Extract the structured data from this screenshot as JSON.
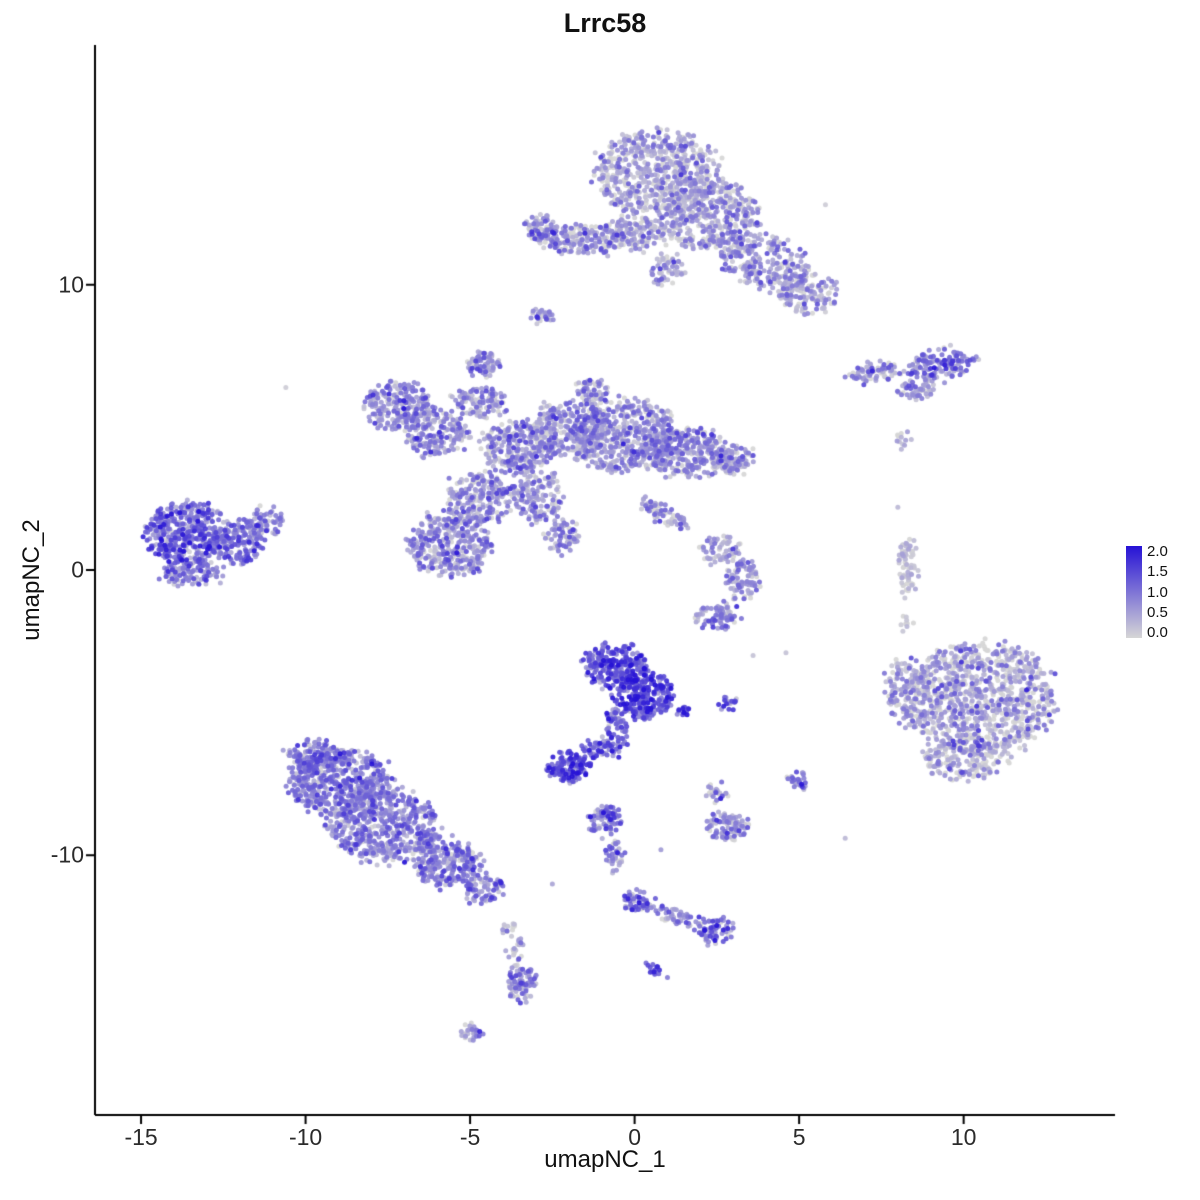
{
  "chart_data": {
    "type": "scatter",
    "title": "Lrrc58",
    "xlabel": "umapNC_1",
    "ylabel": "umapNC_2",
    "xlim": [
      -16.4,
      14.6
    ],
    "ylim": [
      -19.1,
      18.4
    ],
    "x_ticks": [
      -15,
      -10,
      -5,
      0,
      5,
      10
    ],
    "y_ticks": [
      -10,
      0,
      10
    ],
    "grid": false,
    "legend": {
      "labels": [
        "2.0",
        "1.5",
        "1.0",
        "0.5",
        "0.0"
      ],
      "position": "right",
      "domain": [
        0,
        2
      ]
    },
    "color_scale": {
      "low": "#D6D6D6",
      "high": "#2612D6"
    },
    "point_radius_px": 2.5,
    "clusters": [
      {
        "x": 0.7,
        "y": 13.9,
        "rx": 1.9,
        "ry": 1.5,
        "n": 650,
        "m": 0.35
      },
      {
        "x": 2.3,
        "y": 12.4,
        "rx": 1.5,
        "ry": 1.2,
        "n": 380,
        "m": 0.45
      },
      {
        "x": 3.9,
        "y": 10.8,
        "rx": 1.4,
        "ry": 0.9,
        "rot": -20,
        "n": 260,
        "m": 0.5
      },
      {
        "x": 5.3,
        "y": 9.7,
        "rx": 0.9,
        "ry": 0.7,
        "n": 130,
        "m": 0.45
      },
      {
        "x": 0.2,
        "y": 11.8,
        "rx": 1.0,
        "ry": 0.55,
        "n": 150,
        "m": 0.4
      },
      {
        "x": -1.7,
        "y": 11.6,
        "rx": 1.3,
        "ry": 0.5,
        "n": 200,
        "m": 0.45
      },
      {
        "x": -2.9,
        "y": 12.0,
        "rx": 0.4,
        "ry": 0.45,
        "n": 60,
        "m": 0.5
      },
      {
        "x": 1.0,
        "y": 10.5,
        "rx": 0.5,
        "ry": 0.5,
        "n": 60,
        "m": 0.4
      },
      {
        "x": -2.8,
        "y": 8.9,
        "rx": 0.3,
        "ry": 0.25,
        "n": 30,
        "m": 0.5
      },
      {
        "x": -4.6,
        "y": 7.2,
        "rx": 0.45,
        "ry": 0.4,
        "n": 70,
        "m": 0.6
      },
      {
        "x": 7.3,
        "y": 6.9,
        "rx": 0.85,
        "ry": 0.35,
        "rot": 10,
        "n": 80,
        "m": 0.45
      },
      {
        "x": 9.3,
        "y": 7.2,
        "rx": 1.0,
        "ry": 0.5,
        "rot": 10,
        "n": 140,
        "m": 0.85
      },
      {
        "x": 8.6,
        "y": 6.3,
        "rx": 0.6,
        "ry": 0.3,
        "n": 50,
        "m": 0.5
      },
      {
        "x": 8.1,
        "y": 4.6,
        "rx": 0.2,
        "ry": 0.3,
        "n": 12,
        "m": 0.3
      },
      {
        "x": -7.2,
        "y": 5.7,
        "rx": 1.0,
        "ry": 0.85,
        "n": 220,
        "m": 0.65
      },
      {
        "x": -6.0,
        "y": 4.8,
        "rx": 0.95,
        "ry": 0.75,
        "n": 190,
        "m": 0.6
      },
      {
        "x": -4.7,
        "y": 5.9,
        "rx": 0.75,
        "ry": 0.55,
        "n": 110,
        "m": 0.5
      },
      {
        "x": -3.6,
        "y": 4.3,
        "rx": 1.05,
        "ry": 0.9,
        "n": 260,
        "m": 0.55
      },
      {
        "x": -2.0,
        "y": 4.9,
        "rx": 1.2,
        "ry": 1.0,
        "n": 300,
        "m": 0.5
      },
      {
        "x": -0.3,
        "y": 4.7,
        "rx": 1.6,
        "ry": 1.25,
        "n": 520,
        "m": 0.55
      },
      {
        "x": 1.6,
        "y": 4.1,
        "rx": 1.3,
        "ry": 0.85,
        "n": 310,
        "m": 0.55
      },
      {
        "x": 3.0,
        "y": 3.9,
        "rx": 0.6,
        "ry": 0.5,
        "n": 100,
        "m": 0.5
      },
      {
        "x": -5.6,
        "y": 0.9,
        "rx": 1.25,
        "ry": 1.1,
        "n": 380,
        "m": 0.6
      },
      {
        "x": -4.7,
        "y": 2.5,
        "rx": 0.95,
        "ry": 0.9,
        "n": 210,
        "m": 0.55
      },
      {
        "x": -3.0,
        "y": 2.7,
        "rx": 0.75,
        "ry": 1.0,
        "n": 160,
        "m": 0.5
      },
      {
        "x": -2.2,
        "y": 1.2,
        "rx": 0.5,
        "ry": 0.6,
        "n": 70,
        "m": 0.5
      },
      {
        "x": 0.9,
        "y": 1.9,
        "rx": 0.9,
        "ry": 0.28,
        "rot": -35,
        "n": 70,
        "m": 0.5
      },
      {
        "x": -1.3,
        "y": 6.3,
        "rx": 0.5,
        "ry": 0.4,
        "n": 60,
        "m": 0.45
      },
      {
        "x": -13.6,
        "y": 1.3,
        "rx": 1.25,
        "ry": 1.05,
        "n": 420,
        "m": 1.0,
        "s": 0.5
      },
      {
        "x": -12.1,
        "y": 0.9,
        "rx": 0.85,
        "ry": 0.7,
        "n": 160,
        "m": 0.85
      },
      {
        "x": -11.3,
        "y": 1.7,
        "rx": 0.55,
        "ry": 0.45,
        "n": 70,
        "m": 0.75
      },
      {
        "x": -13.4,
        "y": -0.1,
        "rx": 0.95,
        "ry": 0.45,
        "n": 110,
        "m": 0.85
      },
      {
        "x": 2.6,
        "y": 0.7,
        "rx": 0.55,
        "ry": 0.5,
        "n": 60,
        "m": 0.4
      },
      {
        "x": 3.3,
        "y": -0.4,
        "rx": 0.5,
        "ry": 0.75,
        "n": 90,
        "m": 0.5
      },
      {
        "x": 2.5,
        "y": -1.6,
        "rx": 0.65,
        "ry": 0.45,
        "n": 80,
        "m": 0.65
      },
      {
        "x": 8.3,
        "y": 0.1,
        "rx": 0.28,
        "ry": 0.95,
        "n": 70,
        "m": 0.15,
        "s": 0.2
      },
      {
        "x": 8.2,
        "y": -1.9,
        "rx": 0.15,
        "ry": 0.2,
        "n": 10,
        "m": 0.2,
        "s": 0.2
      },
      {
        "x": 10.5,
        "y": -4.5,
        "rx": 2.3,
        "ry": 1.9,
        "n": 950,
        "m": 0.35,
        "s": 0.5
      },
      {
        "x": 8.3,
        "y": -4.3,
        "rx": 0.7,
        "ry": 1.2,
        "n": 140,
        "m": 0.4
      },
      {
        "x": 10.1,
        "y": -6.6,
        "rx": 1.3,
        "ry": 0.75,
        "n": 200,
        "m": 0.4
      },
      {
        "x": -0.6,
        "y": -3.4,
        "rx": 0.95,
        "ry": 0.75,
        "n": 260,
        "m": 1.2
      },
      {
        "x": 0.3,
        "y": -4.4,
        "rx": 0.85,
        "ry": 0.8,
        "n": 230,
        "m": 1.3
      },
      {
        "x": -0.6,
        "y": -5.7,
        "rx": 0.35,
        "ry": 0.85,
        "n": 80,
        "m": 1.0
      },
      {
        "x": -2.0,
        "y": -6.9,
        "rx": 0.6,
        "ry": 0.5,
        "n": 130,
        "m": 1.25
      },
      {
        "x": -1.2,
        "y": -6.3,
        "rx": 0.4,
        "ry": 0.3,
        "n": 40,
        "m": 1.0
      },
      {
        "x": 1.5,
        "y": -4.9,
        "rx": 0.2,
        "ry": 0.2,
        "n": 15,
        "m": 1.5
      },
      {
        "x": 2.8,
        "y": -4.7,
        "rx": 0.3,
        "ry": 0.2,
        "n": 18,
        "m": 1.2
      },
      {
        "x": -8.9,
        "y": -7.5,
        "rx": 1.6,
        "ry": 1.15,
        "n": 520,
        "m": 0.8,
        "s": 0.4
      },
      {
        "x": -7.6,
        "y": -9.0,
        "rx": 1.7,
        "ry": 1.25,
        "n": 520,
        "m": 0.75,
        "s": 0.4
      },
      {
        "x": -5.7,
        "y": -10.3,
        "rx": 1.05,
        "ry": 0.8,
        "n": 240,
        "m": 0.7
      },
      {
        "x": -4.6,
        "y": -11.2,
        "rx": 0.55,
        "ry": 0.5,
        "n": 80,
        "m": 0.7
      },
      {
        "x": -9.7,
        "y": -6.5,
        "rx": 0.85,
        "ry": 0.5,
        "n": 130,
        "m": 0.8
      },
      {
        "x": -0.9,
        "y": -8.8,
        "rx": 0.5,
        "ry": 0.5,
        "n": 80,
        "m": 0.9
      },
      {
        "x": -0.6,
        "y": -10.0,
        "rx": 0.28,
        "ry": 0.6,
        "n": 35,
        "m": 0.7
      },
      {
        "x": 0.1,
        "y": -11.6,
        "rx": 0.45,
        "ry": 0.4,
        "n": 55,
        "m": 0.8
      },
      {
        "x": 1.2,
        "y": -12.1,
        "rx": 0.75,
        "ry": 0.25,
        "rot": -15,
        "n": 45,
        "m": 0.7
      },
      {
        "x": 2.4,
        "y": -12.6,
        "rx": 0.5,
        "ry": 0.45,
        "n": 65,
        "m": 0.9
      },
      {
        "x": 2.8,
        "y": -9.0,
        "rx": 0.6,
        "ry": 0.5,
        "n": 95,
        "m": 0.6
      },
      {
        "x": 2.5,
        "y": -7.8,
        "rx": 0.3,
        "ry": 0.3,
        "n": 25,
        "m": 0.35
      },
      {
        "x": 5.0,
        "y": -7.4,
        "rx": 0.3,
        "ry": 0.3,
        "n": 25,
        "m": 0.7
      },
      {
        "x": -3.4,
        "y": -14.5,
        "rx": 0.45,
        "ry": 0.6,
        "n": 80,
        "m": 0.6
      },
      {
        "x": -3.6,
        "y": -13.3,
        "rx": 0.22,
        "ry": 0.5,
        "n": 22,
        "m": 0.45
      },
      {
        "x": -3.8,
        "y": -12.5,
        "rx": 0.25,
        "ry": 0.2,
        "n": 12,
        "m": 0.4
      },
      {
        "x": -4.9,
        "y": -16.2,
        "rx": 0.35,
        "ry": 0.28,
        "n": 28,
        "m": 0.6
      },
      {
        "x": 0.6,
        "y": -14.0,
        "rx": 0.25,
        "ry": 0.2,
        "n": 15,
        "m": 1.3
      }
    ],
    "singles": [
      [
        5.8,
        12.8,
        0.1
      ],
      [
        -10.6,
        6.4,
        0.1
      ],
      [
        8.0,
        2.2,
        0.3
      ],
      [
        4.6,
        -2.9,
        0.2
      ],
      [
        6.4,
        -9.4,
        0.3
      ],
      [
        -2.5,
        -11.0,
        0.5
      ],
      [
        0.8,
        -9.8,
        0.6
      ],
      [
        3.6,
        -3.0,
        0.2
      ]
    ]
  }
}
